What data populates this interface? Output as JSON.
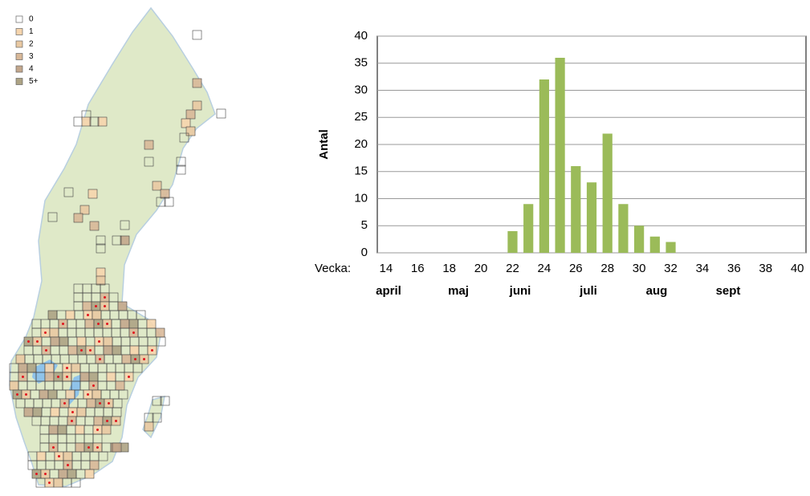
{
  "map_legend": {
    "items": [
      {
        "label": "0",
        "color": "#ffffff"
      },
      {
        "label": "1",
        "color": "#f6d5ad"
      },
      {
        "label": "2",
        "color": "#e9c9a2"
      },
      {
        "label": "3",
        "color": "#d8b898"
      },
      {
        "label": "4",
        "color": "#c3a78c"
      },
      {
        "label": "5+",
        "color": "#ada384"
      }
    ]
  },
  "chart_data": {
    "type": "bar",
    "y_label": "Antal",
    "x_label": "Vecka:",
    "x": [
      22,
      23,
      24,
      25,
      26,
      27,
      28,
      29,
      30,
      31,
      32
    ],
    "values": [
      4,
      9,
      32,
      36,
      16,
      13,
      22,
      9,
      5,
      3,
      2
    ],
    "color": "#9bbb59",
    "xlim": [
      13.45,
      40.55
    ],
    "xticks": [
      14,
      16,
      18,
      20,
      22,
      24,
      26,
      28,
      30,
      32,
      34,
      36,
      38,
      40
    ],
    "ylim": [
      0,
      40
    ],
    "yticks": [
      0,
      5,
      10,
      15,
      20,
      25,
      30,
      35,
      40
    ],
    "grid": true,
    "months": [
      "april",
      "maj",
      "juni",
      "juli",
      "aug",
      "sept"
    ]
  }
}
